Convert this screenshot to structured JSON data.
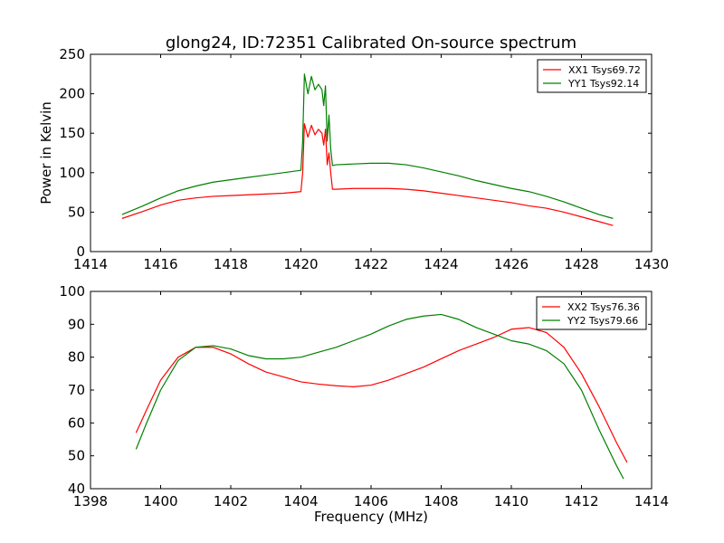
{
  "figure": {
    "title": "glong24, ID:72351 Calibrated On-source spectrum",
    "ylabel": "Power in Kelvin",
    "xlabel": "Frequency (MHz)"
  },
  "colors": {
    "xx": "#ff0000",
    "yy": "#008000"
  },
  "chart_data": [
    {
      "type": "line",
      "xlim": [
        1414,
        1430
      ],
      "ylim": [
        0,
        250
      ],
      "xticks": [
        1414,
        1416,
        1418,
        1420,
        1422,
        1424,
        1426,
        1428,
        1430
      ],
      "yticks": [
        0,
        50,
        100,
        150,
        200,
        250
      ],
      "grid": false,
      "legend_position": "top-right",
      "series": [
        {
          "name": "XX1 Tsys69.72",
          "color": "#ff0000",
          "x": [
            1414.9,
            1415.5,
            1416.0,
            1416.5,
            1417.0,
            1417.5,
            1418.0,
            1418.5,
            1419.0,
            1419.5,
            1420.0,
            1420.05,
            1420.1,
            1420.2,
            1420.3,
            1420.4,
            1420.5,
            1420.6,
            1420.65,
            1420.7,
            1420.75,
            1420.8,
            1420.85,
            1420.9,
            1421.0,
            1421.5,
            1422.0,
            1422.5,
            1423.0,
            1423.5,
            1424.0,
            1424.5,
            1425.0,
            1425.5,
            1426.0,
            1426.5,
            1427.0,
            1427.5,
            1428.0,
            1428.5,
            1428.9
          ],
          "y": [
            42,
            51,
            59,
            65,
            68,
            70,
            71,
            72,
            73,
            74,
            76,
            100,
            162,
            145,
            160,
            148,
            155,
            150,
            135,
            155,
            110,
            125,
            100,
            79,
            79,
            80,
            80,
            80,
            79,
            77,
            74,
            71,
            68,
            65,
            62,
            58,
            55,
            50,
            44,
            38,
            33
          ]
        },
        {
          "name": "YY1 Tsys92.14",
          "color": "#008000",
          "x": [
            1414.9,
            1415.5,
            1416.0,
            1416.5,
            1417.0,
            1417.5,
            1418.0,
            1418.5,
            1419.0,
            1419.5,
            1420.0,
            1420.05,
            1420.1,
            1420.2,
            1420.3,
            1420.4,
            1420.5,
            1420.6,
            1420.65,
            1420.7,
            1420.75,
            1420.8,
            1420.85,
            1420.9,
            1421.0,
            1421.5,
            1422.0,
            1422.5,
            1423.0,
            1423.5,
            1424.0,
            1424.5,
            1425.0,
            1425.5,
            1426.0,
            1426.5,
            1427.0,
            1427.5,
            1428.0,
            1428.5,
            1428.9
          ],
          "y": [
            47,
            58,
            68,
            77,
            83,
            88,
            91,
            94,
            97,
            100,
            103,
            140,
            225,
            200,
            222,
            205,
            212,
            205,
            185,
            210,
            140,
            173,
            130,
            109,
            110,
            111,
            112,
            112,
            110,
            106,
            101,
            96,
            90,
            85,
            80,
            76,
            70,
            63,
            55,
            47,
            42
          ]
        }
      ]
    },
    {
      "type": "line",
      "xlim": [
        1398,
        1414
      ],
      "ylim": [
        40,
        100
      ],
      "xticks": [
        1398,
        1400,
        1402,
        1404,
        1406,
        1408,
        1410,
        1412,
        1414
      ],
      "yticks": [
        40,
        50,
        60,
        70,
        80,
        90,
        100
      ],
      "grid": false,
      "legend_position": "top-right",
      "series": [
        {
          "name": "XX2 Tsys76.36",
          "color": "#ff0000",
          "x": [
            1399.3,
            1399.6,
            1400.0,
            1400.5,
            1401.0,
            1401.5,
            1402.0,
            1402.5,
            1403.0,
            1403.5,
            1404.0,
            1404.5,
            1405.0,
            1405.5,
            1406.0,
            1406.5,
            1407.0,
            1407.5,
            1408.0,
            1408.5,
            1409.0,
            1409.5,
            1410.0,
            1410.5,
            1411.0,
            1411.5,
            1412.0,
            1412.5,
            1413.0,
            1413.3
          ],
          "y": [
            57,
            64,
            73,
            80,
            83,
            83,
            81,
            78,
            75.5,
            74,
            72.5,
            71.8,
            71.3,
            71,
            71.5,
            73,
            75,
            77,
            79.5,
            82,
            84,
            86,
            88.5,
            89,
            87.5,
            83,
            75,
            65,
            54,
            48
          ]
        },
        {
          "name": "YY2 Tsys79.66",
          "color": "#008000",
          "x": [
            1399.3,
            1399.6,
            1400.0,
            1400.5,
            1401.0,
            1401.5,
            1402.0,
            1402.5,
            1403.0,
            1403.5,
            1404.0,
            1404.5,
            1405.0,
            1405.5,
            1406.0,
            1406.5,
            1407.0,
            1407.5,
            1408.0,
            1408.5,
            1409.0,
            1409.5,
            1410.0,
            1410.5,
            1411.0,
            1411.5,
            1412.0,
            1412.5,
            1413.0,
            1413.2
          ],
          "y": [
            52,
            60,
            70,
            79,
            83,
            83.5,
            82.5,
            80.5,
            79.5,
            79.5,
            80,
            81.5,
            83,
            85,
            87,
            89.5,
            91.5,
            92.5,
            93,
            91.5,
            89,
            87,
            85,
            84,
            82,
            78,
            70,
            58,
            47,
            43
          ]
        }
      ]
    }
  ]
}
